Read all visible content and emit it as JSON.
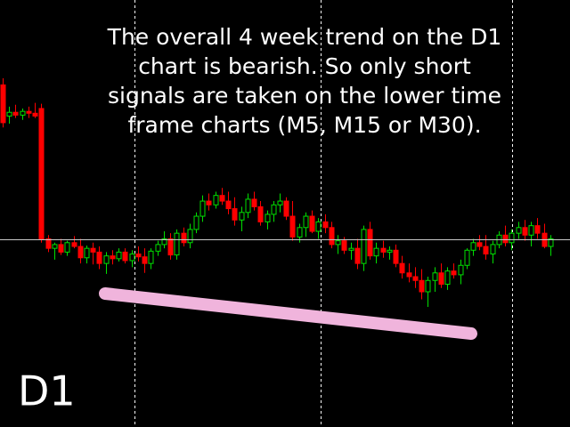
{
  "chart_data": {
    "type": "candlestick",
    "annotation": [
      "The overall 4 week trend on the D1",
      "chart is bearish. So only short",
      "signals are taken on the lower time",
      "frame charts (M5, M15 or M30)."
    ],
    "timeframe_label": "D1",
    "up_color": "#00e000",
    "down_color": "#ff0000",
    "candles": [
      [
        385,
        392,
        340,
        345
      ],
      [
        352,
        362,
        344,
        356
      ],
      [
        356,
        364,
        350,
        353
      ],
      [
        353,
        360,
        348,
        357
      ],
      [
        357,
        362,
        350,
        355
      ],
      [
        355,
        366,
        350,
        352
      ],
      [
        360,
        365,
        218,
        222
      ],
      [
        222,
        226,
        208,
        212
      ],
      [
        212,
        218,
        200,
        216
      ],
      [
        216,
        222,
        205,
        208
      ],
      [
        208,
        220,
        204,
        218
      ],
      [
        218,
        225,
        212,
        214
      ],
      [
        214,
        222,
        196,
        202
      ],
      [
        202,
        215,
        196,
        212
      ],
      [
        212,
        218,
        195,
        208
      ],
      [
        208,
        214,
        190,
        196
      ],
      [
        196,
        208,
        185,
        204
      ],
      [
        204,
        210,
        195,
        201
      ],
      [
        201,
        212,
        198,
        208
      ],
      [
        208,
        212,
        196,
        199
      ],
      [
        199,
        210,
        192,
        206
      ],
      [
        206,
        214,
        198,
        203
      ],
      [
        203,
        212,
        186,
        196
      ],
      [
        196,
        212,
        190,
        209
      ],
      [
        209,
        220,
        204,
        216
      ],
      [
        216,
        230,
        212,
        222
      ],
      [
        222,
        228,
        200,
        205
      ],
      [
        205,
        232,
        200,
        228
      ],
      [
        228,
        234,
        214,
        218
      ],
      [
        218,
        238,
        212,
        232
      ],
      [
        232,
        250,
        228,
        246
      ],
      [
        246,
        268,
        240,
        262
      ],
      [
        262,
        270,
        252,
        258
      ],
      [
        258,
        272,
        254,
        268
      ],
      [
        268,
        276,
        258,
        262
      ],
      [
        262,
        272,
        248,
        254
      ],
      [
        254,
        266,
        236,
        242
      ],
      [
        242,
        256,
        230,
        250
      ],
      [
        250,
        270,
        244,
        264
      ],
      [
        264,
        272,
        252,
        256
      ],
      [
        256,
        262,
        236,
        240
      ],
      [
        240,
        252,
        232,
        248
      ],
      [
        248,
        262,
        240,
        258
      ],
      [
        258,
        270,
        250,
        262
      ],
      [
        262,
        266,
        242,
        246
      ],
      [
        246,
        262,
        220,
        224
      ],
      [
        224,
        238,
        218,
        234
      ],
      [
        234,
        250,
        224,
        246
      ],
      [
        246,
        252,
        228,
        230
      ],
      [
        230,
        244,
        222,
        240
      ],
      [
        240,
        248,
        228,
        234
      ],
      [
        234,
        240,
        212,
        216
      ],
      [
        216,
        226,
        206,
        220
      ],
      [
        220,
        224,
        206,
        210
      ],
      [
        210,
        218,
        200,
        212
      ],
      [
        212,
        222,
        190,
        196
      ],
      [
        196,
        236,
        188,
        232
      ],
      [
        232,
        240,
        200,
        204
      ],
      [
        204,
        218,
        196,
        212
      ],
      [
        212,
        220,
        202,
        208
      ],
      [
        208,
        214,
        200,
        210
      ],
      [
        210,
        216,
        192,
        196
      ],
      [
        196,
        204,
        180,
        186
      ],
      [
        186,
        196,
        176,
        182
      ],
      [
        182,
        192,
        170,
        178
      ],
      [
        178,
        190,
        158,
        166
      ],
      [
        166,
        182,
        150,
        178
      ],
      [
        178,
        192,
        166,
        186
      ],
      [
        186,
        196,
        170,
        174
      ],
      [
        174,
        192,
        168,
        188
      ],
      [
        188,
        196,
        180,
        184
      ],
      [
        184,
        200,
        174,
        194
      ],
      [
        194,
        212,
        190,
        210
      ],
      [
        210,
        222,
        204,
        218
      ],
      [
        218,
        226,
        210,
        214
      ],
      [
        214,
        226,
        200,
        206
      ],
      [
        206,
        220,
        196,
        216
      ],
      [
        216,
        230,
        212,
        226
      ],
      [
        226,
        236,
        214,
        218
      ],
      [
        218,
        232,
        210,
        228
      ],
      [
        228,
        240,
        222,
        234
      ],
      [
        234,
        242,
        220,
        226
      ],
      [
        226,
        240,
        214,
        236
      ],
      [
        236,
        244,
        222,
        228
      ],
      [
        228,
        238,
        212,
        214
      ],
      [
        214,
        226,
        204,
        222
      ]
    ]
  }
}
